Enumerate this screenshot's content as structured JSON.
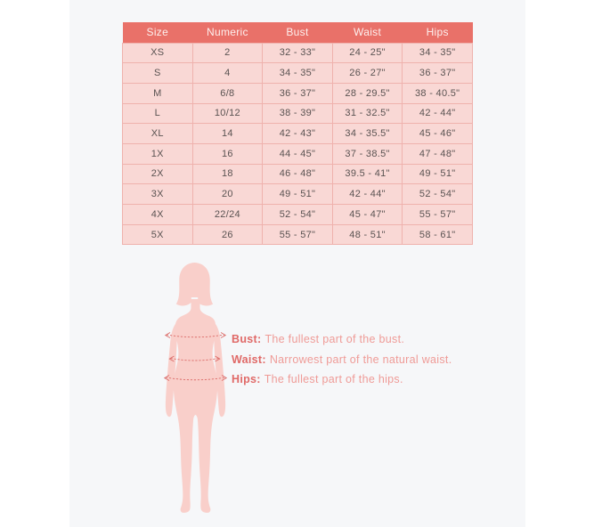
{
  "table": {
    "columns": [
      "Size",
      "Numeric",
      "Bust",
      "Waist",
      "Hips"
    ],
    "rows": [
      [
        "XS",
        "2",
        "32 - 33\"",
        "24 - 25\"",
        "34 - 35\""
      ],
      [
        "S",
        "4",
        "34 - 35\"",
        "26 - 27\"",
        "36 - 37\""
      ],
      [
        "M",
        "6/8",
        "36 - 37\"",
        "28 - 29.5\"",
        "38 - 40.5\""
      ],
      [
        "L",
        "10/12",
        "38 - 39\"",
        "31 - 32.5\"",
        "42 - 44\""
      ],
      [
        "XL",
        "14",
        "42 - 43\"",
        "34 - 35.5\"",
        "45 - 46\""
      ],
      [
        "1X",
        "16",
        "44 - 45\"",
        "37 - 38.5\"",
        "47 - 48\""
      ],
      [
        "2X",
        "18",
        "46 - 48\"",
        "39.5 - 41\"",
        "49 - 51\""
      ],
      [
        "3X",
        "20",
        "49 - 51\"",
        "42 - 44\"",
        "52 - 54\""
      ],
      [
        "4X",
        "22/24",
        "52 - 54\"",
        "45 - 47\"",
        "55 - 57\""
      ],
      [
        "5X",
        "26",
        "55 - 57\"",
        "48 - 51\"",
        "58 - 61\""
      ]
    ]
  },
  "measurements": [
    {
      "label": "Bust:",
      "text": "The fullest part of the bust."
    },
    {
      "label": "Waist:",
      "text": "Narrowest part of the natural waist."
    },
    {
      "label": "Hips:",
      "text": "The fullest part of the hips."
    }
  ],
  "figure": {
    "icon": "female-body-silhouette",
    "fill_color": "#f9cfca",
    "line_color": "#db6b68"
  },
  "colors": {
    "header_bg": "#e97169",
    "header_text": "#fdf0ee",
    "row_bg": "#f9d8d5",
    "row_border": "#efb2ad",
    "cell_text": "#5a5352",
    "panel_bg": "#f6f7f9",
    "label_text": "#e06967",
    "note_text": "#ef9b97"
  }
}
